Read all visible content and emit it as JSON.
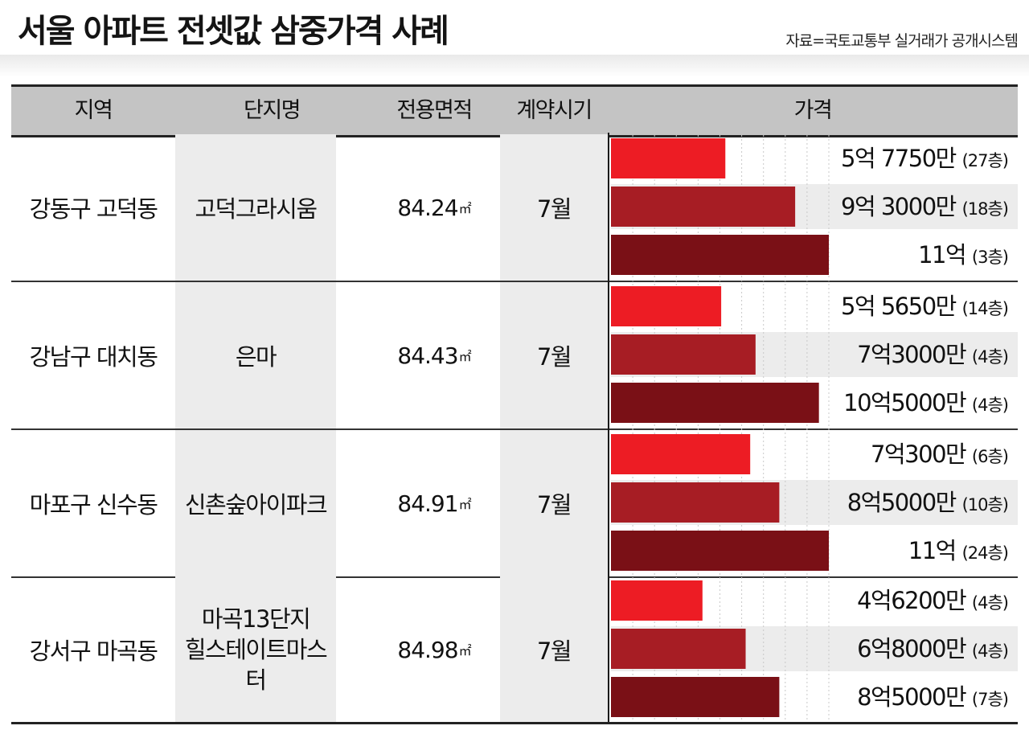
{
  "title": "서울 아파트 전셋값 삼중가격 사례",
  "source": "자료=국토교통부 실거래가 공개시스템",
  "headers": {
    "region": "지역",
    "complex": "단지명",
    "area": "전용면적",
    "period": "계약시기",
    "price": "가격"
  },
  "area_unit": "㎡",
  "colors": {
    "bar_low": "#ed1c24",
    "bar_mid": "#a71d24",
    "bar_high": "#7a1016",
    "header_bg": "#c4c4c4",
    "stripe_bg": "#ececec"
  },
  "rows": [
    {
      "region": "강동구 고덕동",
      "complex": [
        "고덕그라시움"
      ],
      "area": "84.24",
      "period": "7월",
      "prices": [
        {
          "amount": "5억 7750만",
          "floor": "(27층)"
        },
        {
          "amount": "9억 3000만",
          "floor": "(18층)"
        },
        {
          "amount": "11억",
          "floor": "(3층)"
        }
      ]
    },
    {
      "region": "강남구 대치동",
      "complex": [
        "은마"
      ],
      "area": "84.43",
      "period": "7월",
      "prices": [
        {
          "amount": "5억 5650만",
          "floor": "(14층)"
        },
        {
          "amount": "7억3000만",
          "floor": "(4층)"
        },
        {
          "amount": "10억5000만",
          "floor": "(4층)"
        }
      ]
    },
    {
      "region": "마포구 신수동",
      "complex": [
        "신촌숲아이파크"
      ],
      "area": "84.91",
      "period": "7월",
      "prices": [
        {
          "amount": "7억300만",
          "floor": "(6층)"
        },
        {
          "amount": "8억5000만",
          "floor": "(10층)"
        },
        {
          "amount": "11억",
          "floor": "(24층)"
        }
      ]
    },
    {
      "region": "강서구 마곡동",
      "complex": [
        "마곡13단지",
        "힐스테이트마스터"
      ],
      "area": "84.98",
      "period": "7월",
      "prices": [
        {
          "amount": "4억6200만",
          "floor": "(4층)"
        },
        {
          "amount": "6억8000만",
          "floor": "(4층)"
        },
        {
          "amount": "8억5000만",
          "floor": "(7층)"
        }
      ]
    }
  ],
  "chart_data": {
    "type": "bar",
    "orientation": "horizontal",
    "unit": "만원",
    "groups": [
      "강동구 고덕동",
      "강남구 대치동",
      "마포구 신수동",
      "강서구 마곡동"
    ],
    "values": [
      [
        57750,
        93000,
        110000
      ],
      [
        55650,
        73000,
        105000
      ],
      [
        70300,
        85000,
        110000
      ],
      [
        46200,
        68000,
        85000
      ]
    ],
    "bar_colors": [
      "#ed1c24",
      "#a71d24",
      "#7a1016"
    ],
    "xlim": [
      0,
      110000
    ]
  }
}
